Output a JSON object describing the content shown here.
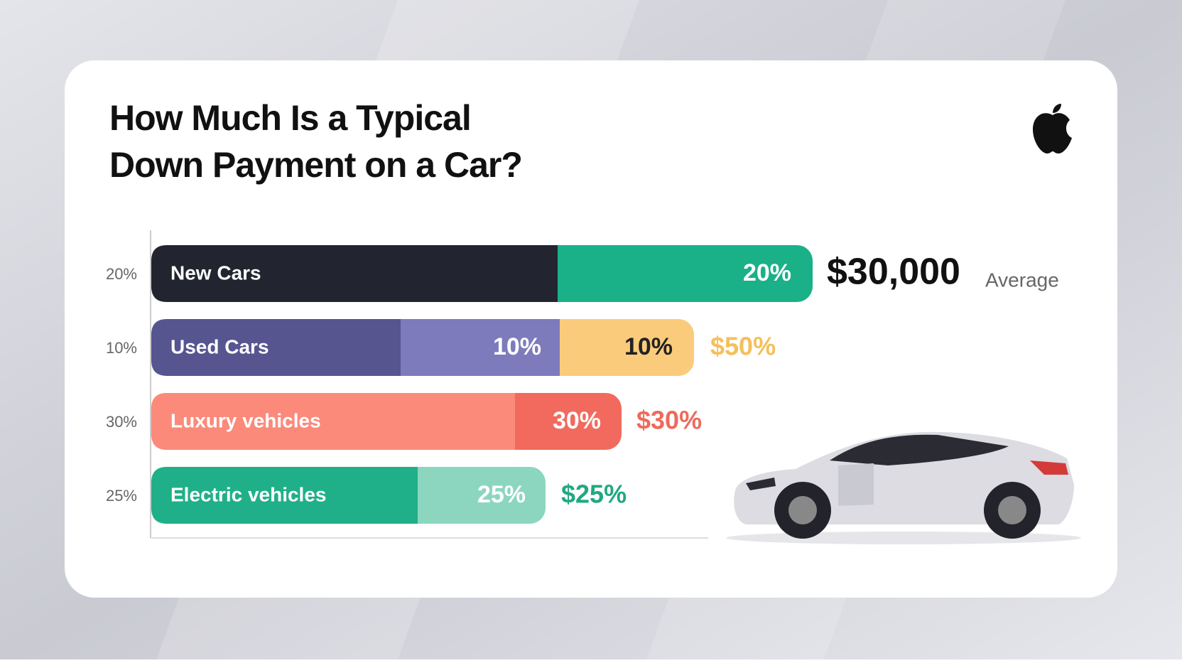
{
  "header": {
    "title_lines": [
      "How Much Is a Typical",
      "Down Payment on a Car?"
    ]
  },
  "rows": [
    {
      "axis_label": "20%",
      "label": "New Cars",
      "segments": [
        "20%"
      ],
      "value": "$30,000",
      "note": "Average"
    },
    {
      "axis_label": "10%",
      "label": "Used Cars",
      "segments": [
        "10%",
        "10%"
      ],
      "value": "$50%"
    },
    {
      "axis_label": "30%",
      "label": "Luxury vehicles",
      "segments": [
        "30%"
      ],
      "value": "$30%"
    },
    {
      "axis_label": "25%",
      "label": "Electric vehicles",
      "segments": [
        "25%"
      ],
      "value": "$25%"
    }
  ]
}
